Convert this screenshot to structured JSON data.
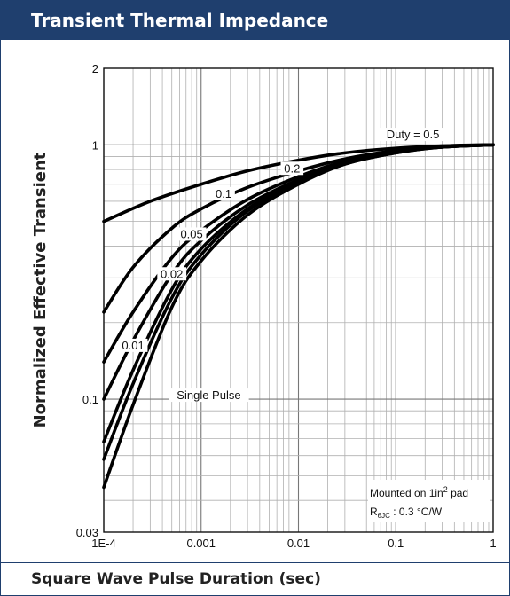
{
  "header": {
    "title": "Transient Thermal Impedance"
  },
  "footer": {
    "xlabel": "Square Wave Pulse Duration (sec)"
  },
  "chart_data": {
    "type": "line",
    "title": "Transient Thermal Impedance",
    "xlabel": "Square Wave Pulse Duration (sec)",
    "ylabel": "Normalized Effective Transient",
    "x_scale": "log",
    "y_scale": "log",
    "xlim": [
      0.0001,
      1
    ],
    "ylim": [
      0.03,
      2
    ],
    "grid": true,
    "x_ticks": [
      {
        "value": 0.0001,
        "label": "1E-4"
      },
      {
        "value": 0.001,
        "label": "0.001"
      },
      {
        "value": 0.01,
        "label": "0.01"
      },
      {
        "value": 0.1,
        "label": "0.1"
      },
      {
        "value": 1,
        "label": "1"
      }
    ],
    "y_ticks": [
      {
        "value": 0.03,
        "label": "0.03"
      },
      {
        "value": 0.1,
        "label": "0.1"
      },
      {
        "value": 1,
        "label": "1"
      },
      {
        "value": 2,
        "label": "2"
      }
    ],
    "series": [
      {
        "name": "Duty = 0.5",
        "x": [
          0.0001,
          0.0003,
          0.001,
          0.003,
          0.01,
          0.03,
          0.1,
          0.3,
          1
        ],
        "y": [
          0.5,
          0.6,
          0.7,
          0.79,
          0.87,
          0.93,
          0.97,
          0.99,
          1.0
        ]
      },
      {
        "name": "0.2",
        "x": [
          0.0001,
          0.0002,
          0.0005,
          0.001,
          0.003,
          0.01,
          0.03,
          0.1,
          0.3,
          1
        ],
        "y": [
          0.22,
          0.33,
          0.47,
          0.56,
          0.68,
          0.79,
          0.88,
          0.95,
          0.99,
          1.0
        ]
      },
      {
        "name": "0.1",
        "x": [
          0.0001,
          0.0002,
          0.0005,
          0.001,
          0.003,
          0.01,
          0.03,
          0.1,
          0.3,
          1
        ],
        "y": [
          0.14,
          0.22,
          0.36,
          0.46,
          0.61,
          0.75,
          0.86,
          0.94,
          0.98,
          1.0
        ]
      },
      {
        "name": "0.05",
        "x": [
          0.0001,
          0.0002,
          0.0005,
          0.001,
          0.003,
          0.01,
          0.03,
          0.1,
          0.3,
          1
        ],
        "y": [
          0.1,
          0.17,
          0.31,
          0.42,
          0.58,
          0.73,
          0.85,
          0.94,
          0.98,
          1.0
        ]
      },
      {
        "name": "0.02",
        "x": [
          0.0001,
          0.0002,
          0.0005,
          0.001,
          0.003,
          0.01,
          0.03,
          0.1,
          0.3,
          1
        ],
        "y": [
          0.068,
          0.13,
          0.27,
          0.39,
          0.56,
          0.72,
          0.85,
          0.94,
          0.98,
          1.0
        ]
      },
      {
        "name": "0.01",
        "x": [
          0.0001,
          0.0002,
          0.0005,
          0.001,
          0.003,
          0.01,
          0.03,
          0.1,
          0.3,
          1
        ],
        "y": [
          0.058,
          0.115,
          0.25,
          0.37,
          0.55,
          0.71,
          0.84,
          0.93,
          0.98,
          1.0
        ]
      },
      {
        "name": "Single Pulse",
        "x": [
          0.0001,
          0.0002,
          0.0005,
          0.001,
          0.003,
          0.01,
          0.03,
          0.1,
          0.3,
          1
        ],
        "y": [
          0.045,
          0.095,
          0.23,
          0.35,
          0.53,
          0.7,
          0.84,
          0.93,
          0.98,
          1.0
        ]
      }
    ],
    "curve_labels": [
      {
        "text": "Duty = 0.5",
        "x": 0.15,
        "y": 1.06
      },
      {
        "text": "0.2",
        "x": 0.0086,
        "y": 0.78
      },
      {
        "text": "0.1",
        "x": 0.0017,
        "y": 0.62
      },
      {
        "text": "0.05",
        "x": 0.0008,
        "y": 0.43
      },
      {
        "text": "0.02",
        "x": 0.0005,
        "y": 0.3
      },
      {
        "text": "0.01",
        "x": 0.0002,
        "y": 0.157
      },
      {
        "text": "Single Pulse",
        "x": 0.0012,
        "y": 0.1
      }
    ],
    "annotations": {
      "mounted": "Mounted on 1in² pad",
      "mounted_base": "Mounted on 1in",
      "mounted_sup": "2",
      "mounted_tail": " pad",
      "rth_symbol": "R",
      "rth_subscript": "θJC",
      "rth_value": " : 0.3 °C/W"
    }
  }
}
